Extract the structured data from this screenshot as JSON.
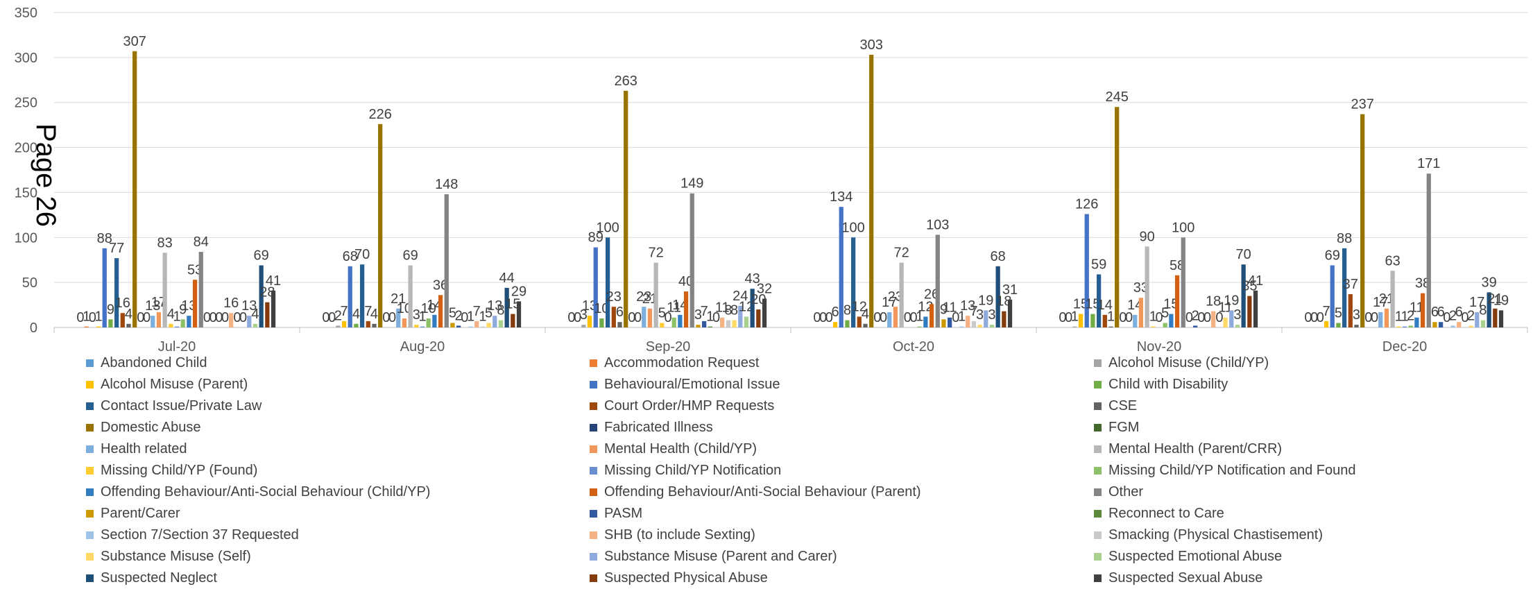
{
  "page_label": "Page 26",
  "chart_data": {
    "type": "bar",
    "ylim": [
      0,
      350
    ],
    "yticks": [
      0,
      50,
      100,
      150,
      200,
      250,
      300,
      350
    ],
    "grid": true,
    "legend_position": "bottom",
    "categories": [
      "Jul-20",
      "Aug-20",
      "Sep-20",
      "Oct-20",
      "Nov-20",
      "Dec-20"
    ],
    "series": [
      {
        "name": "Abandoned Child",
        "color": "#5B9BD5",
        "values": [
          0,
          0,
          0,
          0,
          0,
          0
        ]
      },
      {
        "name": "Accommodation Request",
        "color": "#ED7D31",
        "values": [
          1,
          0,
          0,
          0,
          0,
          0
        ]
      },
      {
        "name": "Alcohol Misuse (Child/YP)",
        "color": "#A5A5A5",
        "values": [
          0,
          2,
          3,
          0,
          1,
          0
        ]
      },
      {
        "name": "Alcohol Misuse (Parent)",
        "color": "#FFC000",
        "values": [
          1,
          7,
          13,
          6,
          15,
          7
        ]
      },
      {
        "name": "Behavioural/Emotional Issue",
        "color": "#4472C4",
        "values": [
          88,
          68,
          89,
          134,
          126,
          69
        ]
      },
      {
        "name": "Child with Disability",
        "color": "#70AD47",
        "values": [
          9,
          4,
          10,
          8,
          15,
          5
        ]
      },
      {
        "name": "Contact Issue/Private Law",
        "color": "#255E91",
        "values": [
          77,
          70,
          100,
          100,
          59,
          88
        ]
      },
      {
        "name": "Court Order/HMP Requests",
        "color": "#9E480E",
        "values": [
          16,
          7,
          23,
          12,
          14,
          37
        ]
      },
      {
        "name": "CSE",
        "color": "#636363",
        "values": [
          4,
          4,
          6,
          4,
          1,
          3
        ]
      },
      {
        "name": "Domestic Abuse",
        "color": "#997300",
        "values": [
          307,
          226,
          263,
          303,
          245,
          237
        ]
      },
      {
        "name": "Fabricated Illness",
        "color": "#264478",
        "values": [
          0,
          0,
          0,
          0,
          0,
          0
        ]
      },
      {
        "name": "FGM",
        "color": "#43682B",
        "values": [
          0,
          0,
          0,
          0,
          0,
          0
        ]
      },
      {
        "name": "Health related",
        "color": "#7CAFDD",
        "values": [
          13,
          21,
          23,
          17,
          14,
          17
        ]
      },
      {
        "name": "Mental Health (Child/YP)",
        "color": "#F1975A",
        "values": [
          17,
          10,
          21,
          23,
          33,
          21
        ]
      },
      {
        "name": "Mental Health (Parent/CRR)",
        "color": "#B7B7B7",
        "values": [
          83,
          69,
          72,
          72,
          90,
          63
        ]
      },
      {
        "name": "Missing Child/YP (Found)",
        "color": "#FFCD33",
        "values": [
          4,
          3,
          5,
          0,
          1,
          1
        ]
      },
      {
        "name": "Missing Child/YP Notification",
        "color": "#698ED0",
        "values": [
          1,
          1,
          0,
          0,
          0,
          1
        ]
      },
      {
        "name": "Missing Child/YP Notification and Found",
        "color": "#8CC168",
        "values": [
          9,
          10,
          11,
          1,
          5,
          2
        ]
      },
      {
        "name": "Offending Behaviour/Anti-Social Behaviour (Child/YP)",
        "color": "#327DC2",
        "values": [
          13,
          14,
          14,
          12,
          15,
          11
        ]
      },
      {
        "name": "Offending Behaviour/Anti-Social Behaviour (Parent)",
        "color": "#D26012",
        "values": [
          53,
          36,
          40,
          26,
          58,
          38
        ]
      },
      {
        "name": "Other",
        "color": "#848484",
        "values": [
          84,
          148,
          149,
          103,
          100,
          171
        ]
      },
      {
        "name": "Parent/Carer",
        "color": "#CC9A00",
        "values": [
          0,
          5,
          3,
          9,
          0,
          6
        ]
      },
      {
        "name": "PASM",
        "color": "#335AA1",
        "values": [
          0,
          2,
          7,
          11,
          2,
          6
        ]
      },
      {
        "name": "Reconnect to Care",
        "color": "#5A8A39",
        "values": [
          0,
          0,
          1,
          0,
          0,
          0
        ]
      },
      {
        "name": "Section 7/Section 37 Requested",
        "color": "#9DC3E6",
        "values": [
          0,
          1,
          0,
          1,
          0,
          2
        ]
      },
      {
        "name": "SHB (to include Sexting)",
        "color": "#F4B183",
        "values": [
          16,
          7,
          11,
          13,
          18,
          6
        ]
      },
      {
        "name": "Smacking (Physical Chastisement)",
        "color": "#C9C9C9",
        "values": [
          0,
          1,
          8,
          7,
          0,
          0
        ]
      },
      {
        "name": "Substance Misuse (Self)",
        "color": "#FFD966",
        "values": [
          0,
          5,
          8,
          3,
          11,
          2
        ]
      },
      {
        "name": "Substance Misuse (Parent and Carer)",
        "color": "#8FAADC",
        "values": [
          13,
          13,
          24,
          19,
          19,
          17
        ]
      },
      {
        "name": "Suspected Emotional Abuse",
        "color": "#A9D18E",
        "values": [
          4,
          8,
          12,
          3,
          3,
          8
        ]
      },
      {
        "name": "Suspected Neglect",
        "color": "#1F4E79",
        "values": [
          69,
          44,
          43,
          68,
          70,
          39
        ]
      },
      {
        "name": "Suspected Physical Abuse",
        "color": "#843C0C",
        "values": [
          28,
          15,
          20,
          18,
          35,
          21
        ]
      },
      {
        "name": "Suspected Sexual Abuse",
        "color": "#404040",
        "values": [
          41,
          29,
          32,
          31,
          41,
          19
        ]
      }
    ]
  }
}
